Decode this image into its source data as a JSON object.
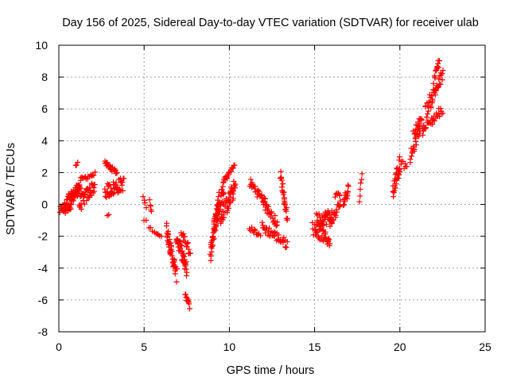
{
  "chart_data": {
    "type": "scatter",
    "title": "Day 156 of 2025, Sidereal Day-to-day VTEC variation (SDTVAR) for receiver ulab",
    "xlabel": "GPS time / hours",
    "ylabel": "SDTVAR / TECUs",
    "xlim": [
      0,
      25
    ],
    "ylim": [
      -8,
      10
    ],
    "xticks": [
      0,
      5,
      10,
      15,
      20,
      25
    ],
    "yticks": [
      -8,
      -6,
      -4,
      -2,
      0,
      2,
      4,
      6,
      8,
      10
    ],
    "grid": true,
    "marker": "+",
    "color": "#ff0000",
    "segments": [
      {
        "x0": 0.05,
        "x1": 0.4,
        "y0": -0.4,
        "y1": -0.1,
        "spread": 0.25,
        "n": 12
      },
      {
        "x0": 0.3,
        "x1": 1.2,
        "y0": -0.3,
        "y1": 0.9,
        "spread": 0.5,
        "n": 45
      },
      {
        "x0": 0.5,
        "x1": 1.3,
        "y0": 0.2,
        "y1": 1.2,
        "spread": 0.4,
        "n": 30
      },
      {
        "x0": 1.0,
        "x1": 1.1,
        "y0": 2.4,
        "y1": 2.6,
        "spread": 0.05,
        "n": 3
      },
      {
        "x0": 1.3,
        "x1": 2.1,
        "y0": 1.6,
        "y1": 1.9,
        "spread": 0.15,
        "n": 14
      },
      {
        "x0": 1.2,
        "x1": 2.1,
        "y0": 0.0,
        "y1": 1.2,
        "spread": 0.45,
        "n": 40
      },
      {
        "x0": 2.7,
        "x1": 3.4,
        "y0": 2.6,
        "y1": 2.0,
        "spread": 0.15,
        "n": 22
      },
      {
        "x0": 2.7,
        "x1": 3.8,
        "y0": 0.8,
        "y1": 1.3,
        "spread": 0.45,
        "n": 45
      },
      {
        "x0": 2.85,
        "x1": 2.95,
        "y0": -0.7,
        "y1": -0.65,
        "spread": 0.05,
        "n": 2
      },
      {
        "x0": 4.95,
        "x1": 5.1,
        "y0": 0.5,
        "y1": -0.2,
        "spread": 0.1,
        "n": 4
      },
      {
        "x0": 5.0,
        "x1": 5.1,
        "y0": -1.0,
        "y1": -1.0,
        "spread": 0.05,
        "n": 2
      },
      {
        "x0": 5.3,
        "x1": 5.45,
        "y0": 0.2,
        "y1": -0.5,
        "spread": 0.1,
        "n": 5
      },
      {
        "x0": 5.3,
        "x1": 5.5,
        "y0": -1.4,
        "y1": -1.6,
        "spread": 0.08,
        "n": 3
      },
      {
        "x0": 5.6,
        "x1": 6.0,
        "y0": -1.7,
        "y1": -2.0,
        "spread": 0.12,
        "n": 6
      },
      {
        "x0": 6.3,
        "x1": 6.9,
        "y0": -1.5,
        "y1": -4.5,
        "spread": 0.45,
        "n": 45
      },
      {
        "x0": 6.9,
        "x1": 7.5,
        "y0": -2.0,
        "y1": -4.2,
        "spread": 0.45,
        "n": 40
      },
      {
        "x0": 7.2,
        "x1": 7.7,
        "y0": -1.8,
        "y1": -3.0,
        "spread": 0.3,
        "n": 20
      },
      {
        "x0": 7.4,
        "x1": 7.65,
        "y0": -5.6,
        "y1": -6.4,
        "spread": 0.15,
        "n": 12
      },
      {
        "x0": 8.9,
        "x1": 9.4,
        "y0": -3.1,
        "y1": 0.5,
        "spread": 0.55,
        "n": 45
      },
      {
        "x0": 9.1,
        "x1": 9.7,
        "y0": -1.5,
        "y1": 1.2,
        "spread": 0.55,
        "n": 40
      },
      {
        "x0": 9.5,
        "x1": 10.35,
        "y0": -0.8,
        "y1": 1.1,
        "spread": 0.55,
        "n": 45
      },
      {
        "x0": 9.7,
        "x1": 10.3,
        "y0": 1.5,
        "y1": 2.45,
        "spread": 0.15,
        "n": 16
      },
      {
        "x0": 11.2,
        "x1": 12.2,
        "y0": 1.4,
        "y1": 0.0,
        "spread": 0.3,
        "n": 30
      },
      {
        "x0": 11.2,
        "x1": 11.8,
        "y0": -1.5,
        "y1": -1.9,
        "spread": 0.15,
        "n": 12
      },
      {
        "x0": 11.9,
        "x1": 13.4,
        "y0": -1.4,
        "y1": -2.5,
        "spread": 0.3,
        "n": 40
      },
      {
        "x0": 12.0,
        "x1": 12.8,
        "y0": 0.1,
        "y1": -1.2,
        "spread": 0.3,
        "n": 25
      },
      {
        "x0": 13.0,
        "x1": 13.4,
        "y0": 1.8,
        "y1": -0.8,
        "spread": 0.3,
        "n": 25
      },
      {
        "x0": 14.9,
        "x1": 15.9,
        "y0": -1.5,
        "y1": -2.3,
        "spread": 0.4,
        "n": 40
      },
      {
        "x0": 15.1,
        "x1": 16.0,
        "y0": -1.0,
        "y1": -0.7,
        "spread": 0.45,
        "n": 40
      },
      {
        "x0": 15.9,
        "x1": 16.5,
        "y0": -1.3,
        "y1": 0.1,
        "spread": 0.35,
        "n": 22
      },
      {
        "x0": 16.2,
        "x1": 16.5,
        "y0": 0.5,
        "y1": 0.7,
        "spread": 0.15,
        "n": 6
      },
      {
        "x0": 16.7,
        "x1": 17.0,
        "y0": 0.1,
        "y1": 1.1,
        "spread": 0.35,
        "n": 16
      },
      {
        "x0": 17.6,
        "x1": 17.8,
        "y0": 0.2,
        "y1": 2.0,
        "spread": 0.1,
        "n": 6
      },
      {
        "x0": 19.6,
        "x1": 20.0,
        "y0": 0.8,
        "y1": 2.6,
        "spread": 0.5,
        "n": 30
      },
      {
        "x0": 20.0,
        "x1": 20.4,
        "y0": 2.8,
        "y1": 2.2,
        "spread": 0.2,
        "n": 8
      },
      {
        "x0": 20.6,
        "x1": 21.2,
        "y0": 2.9,
        "y1": 4.8,
        "spread": 0.35,
        "n": 22
      },
      {
        "x0": 20.8,
        "x1": 21.3,
        "y0": 4.5,
        "y1": 5.5,
        "spread": 0.2,
        "n": 14
      },
      {
        "x0": 21.3,
        "x1": 22.5,
        "y0": 4.6,
        "y1": 6.0,
        "spread": 0.3,
        "n": 30
      },
      {
        "x0": 21.5,
        "x1": 22.5,
        "y0": 5.8,
        "y1": 8.1,
        "spread": 0.45,
        "n": 40
      },
      {
        "x0": 22.0,
        "x1": 22.3,
        "y0": 7.8,
        "y1": 9.0,
        "spread": 0.25,
        "n": 14
      }
    ]
  }
}
